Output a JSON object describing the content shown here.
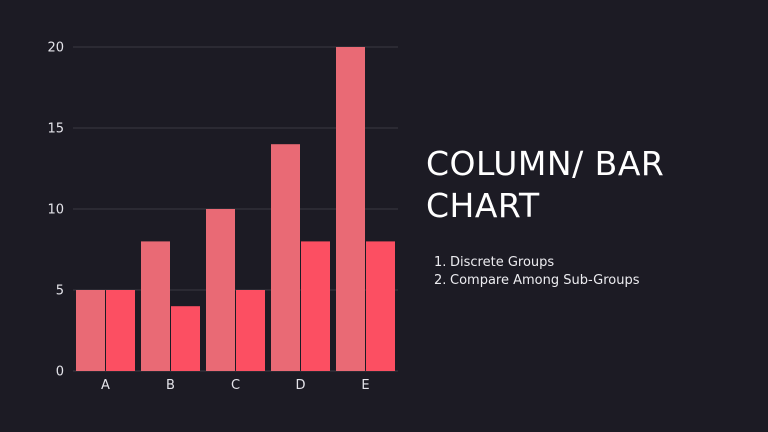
{
  "slide": {
    "title": "COLUMN/ BAR CHART",
    "points": [
      {
        "num": "1.",
        "text": "Discrete Groups"
      },
      {
        "num": "2.",
        "text": "Compare Among Sub-Groups"
      }
    ]
  },
  "colors": {
    "background": "#1c1b24",
    "gridline": "#3a3942",
    "series_1": "#e96a75",
    "series_2": "#fc4f62",
    "text": "#e4e4ea"
  },
  "chart_data": {
    "type": "bar",
    "categories": [
      "A",
      "B",
      "C",
      "D",
      "E"
    ],
    "series": [
      {
        "values": [
          5,
          8,
          10,
          14,
          20
        ]
      },
      {
        "values": [
          5,
          4,
          5,
          8,
          8
        ]
      }
    ],
    "ylim": [
      0,
      20
    ],
    "yticks": [
      0,
      5,
      10,
      15,
      20
    ],
    "grid": true,
    "legend": "none"
  }
}
